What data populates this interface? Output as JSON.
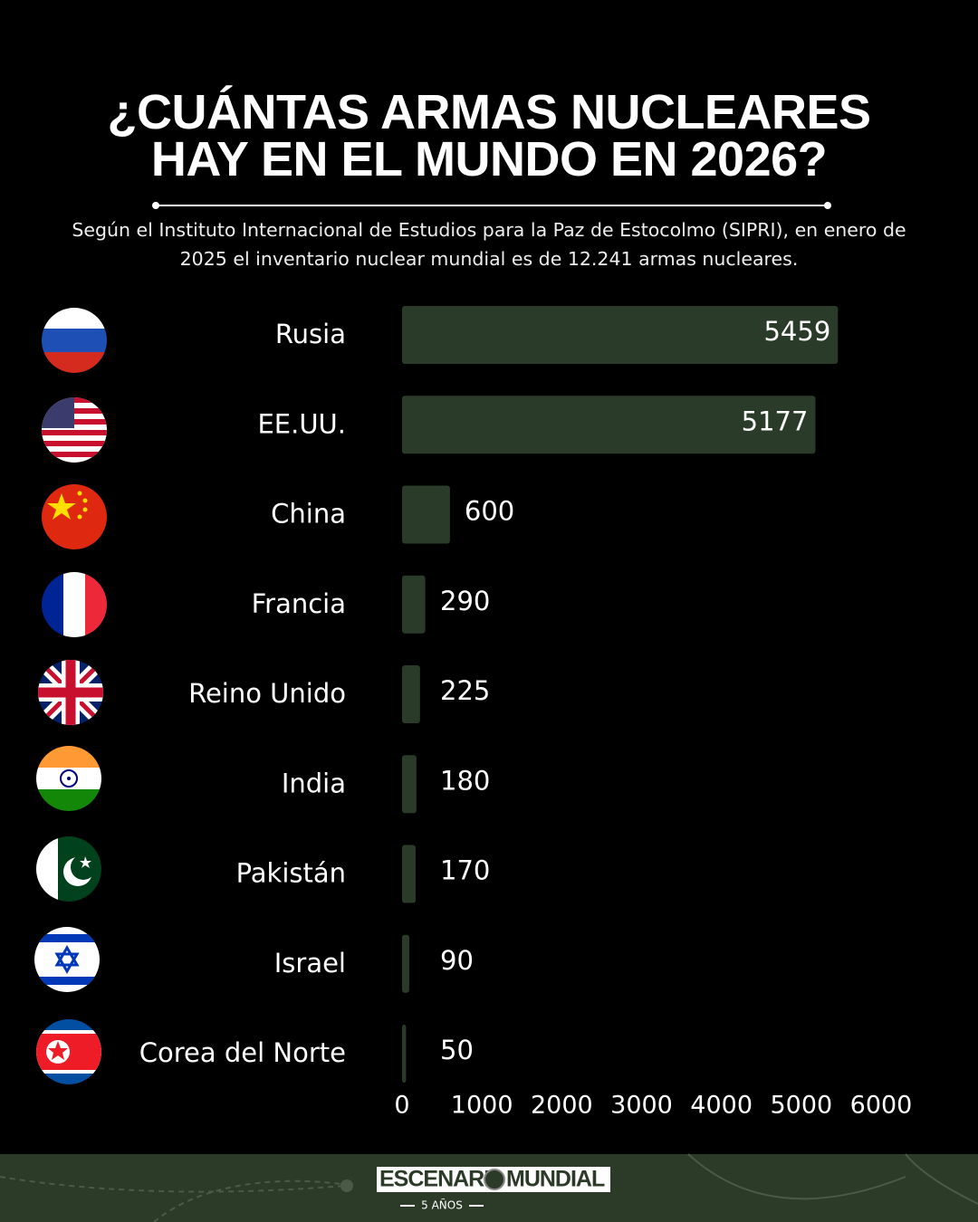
{
  "chart_data": {
    "type": "bar",
    "orientation": "horizontal",
    "title": "¿CUÁNTAS ARMAS NUCLEARES HAY EN EL MUNDO EN 2026?",
    "subtitle": "Según el Instituto Internacional de Estudios para la Paz de Estocolmo (SIPRI), en enero de 2025 el inventario nuclear mundial es de 12.241 armas nucleares.",
    "categories": [
      "Rusia",
      "EE.UU.",
      "China",
      "Francia",
      "Reino Unido",
      "India",
      "Pakistán",
      "Israel",
      "Corea del Norte"
    ],
    "values": [
      5459,
      5177,
      600,
      290,
      225,
      180,
      170,
      90,
      50
    ],
    "color": "#2a3b29",
    "xlim": [
      0,
      6000
    ],
    "xticks": [
      0,
      1000,
      2000,
      3000,
      4000,
      5000,
      6000
    ],
    "grid": false
  },
  "footer": {
    "brand_left": "ESCENARI",
    "brand_right": "MUNDIAL",
    "tagline": "5 AÑOS"
  }
}
